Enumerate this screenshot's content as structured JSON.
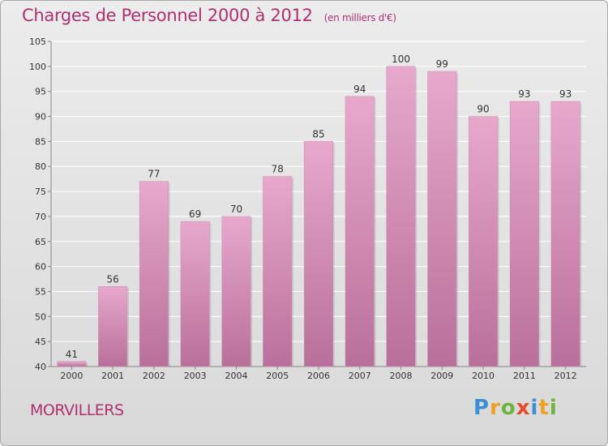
{
  "header": {
    "title": "Charges de Personnel 2000 à 2012",
    "subtitle": "(en milliers d'€)"
  },
  "footer": {
    "town": "MORVILLERS",
    "logo": [
      "P",
      "r",
      "o",
      "x",
      "i",
      "t",
      "i"
    ]
  },
  "colors": {
    "title": "#b03070",
    "bar_top": "#e8a8cc",
    "bar_bottom": "#b8709a",
    "grid": "#ffffff"
  },
  "chart_data": {
    "type": "bar",
    "title": "Charges de Personnel 2000 à 2012",
    "categories": [
      "2000",
      "2001",
      "2002",
      "2003",
      "2004",
      "2005",
      "2006",
      "2007",
      "2008",
      "2009",
      "2010",
      "2011",
      "2012"
    ],
    "values": [
      41,
      56,
      77,
      69,
      70,
      78,
      85,
      94,
      100,
      99,
      90,
      93,
      93
    ],
    "yticks": [
      40,
      45,
      50,
      55,
      60,
      65,
      70,
      75,
      80,
      85,
      90,
      95,
      100,
      105
    ],
    "ylim": [
      40,
      105
    ],
    "grid": true,
    "xlabel": "",
    "ylabel": ""
  }
}
